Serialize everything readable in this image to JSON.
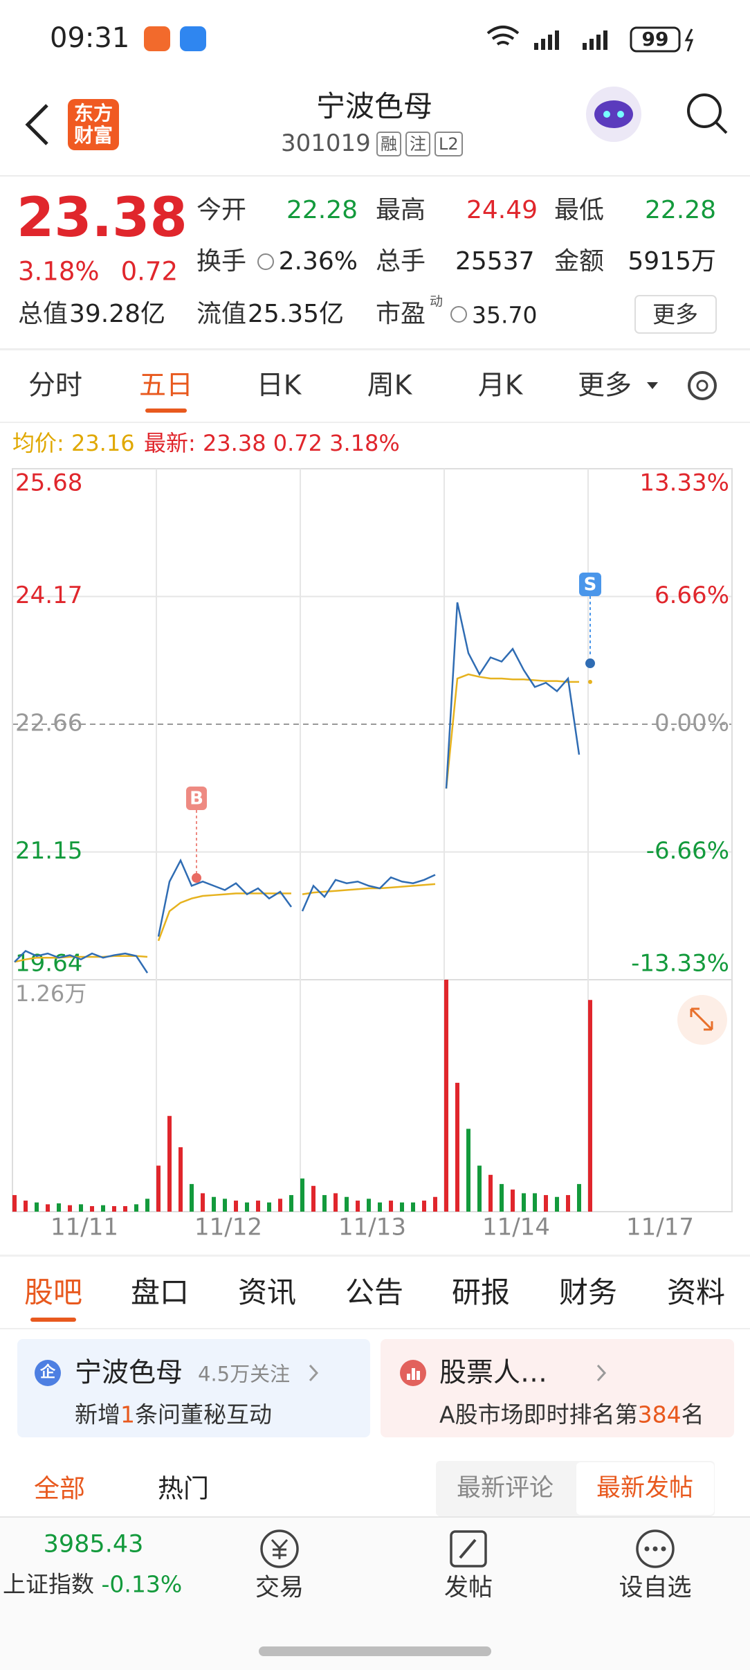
{
  "status_bar": {
    "time": "09:31",
    "battery": "99"
  },
  "header": {
    "logo": "东方财富",
    "title": "宁波色母",
    "code": "301019",
    "badges": [
      "融",
      "注",
      "L2"
    ]
  },
  "quote": {
    "price": "23.38",
    "change_pct": "3.18%",
    "change": "0.72",
    "stats": [
      {
        "label": "今开",
        "value": "22.28"
      },
      {
        "label": "最高",
        "value": "24.49"
      },
      {
        "label": "最低",
        "value": "22.28"
      },
      {
        "label": "换手",
        "value": "2.36%"
      },
      {
        "label": "总手",
        "value": "25537"
      },
      {
        "label": "金额",
        "value": "5915万"
      },
      {
        "label": "总值",
        "value": "39.28亿"
      },
      {
        "label": "流值",
        "value": "25.35亿"
      },
      {
        "label": "市盈",
        "label_sup": "动",
        "value": "35.70"
      }
    ],
    "more_button": "更多"
  },
  "tabs": {
    "items": [
      "分时",
      "五日",
      "日K",
      "周K",
      "月K",
      "更多"
    ],
    "active": 1
  },
  "chart_info": {
    "avg": "均价: 23.16",
    "latest": "最新: 23.38 0.72 3.18%"
  },
  "chart": {
    "type": "line",
    "ylim": [
      19.64,
      25.68
    ],
    "yticks": [
      25.68,
      24.17,
      22.66,
      21.15,
      19.64
    ],
    "y2lim": [
      -13.33,
      13.33
    ],
    "y2ticks": [
      {
        "value": 13.33,
        "label": "13.33%"
      },
      {
        "value": 6.66,
        "label": "6.66%"
      },
      {
        "value": 0,
        "label": "0.00%"
      },
      {
        "value": -6.66,
        "label": "-6.66%"
      },
      {
        "value": -13.33,
        "label": "-13.33%"
      }
    ],
    "volume_ylim": [
      0,
      12600
    ],
    "volume_ticks": [
      {
        "value": 12600,
        "label": "1.26万"
      }
    ],
    "price_color": "#2f6cb3",
    "avg_color": "#e6b21e",
    "up_color": "#e0262c",
    "down_color": "#139a3c",
    "markers": [
      {
        "label": "B"
      },
      {
        "label": "S"
      }
    ],
    "days": [
      {
        "date": "11/11",
        "price": [
          19.85,
          19.98,
          19.92,
          19.95,
          19.9,
          19.93,
          19.88,
          19.95,
          19.9,
          19.93,
          19.95,
          19.92,
          19.72
        ],
        "avg": [
          19.85,
          19.88,
          19.9,
          19.9,
          19.9,
          19.91,
          19.91,
          19.91,
          19.91,
          19.92,
          19.92,
          19.92,
          19.91
        ],
        "volume": [
          900,
          600,
          500,
          400,
          450,
          350,
          400,
          300,
          350,
          300,
          300,
          400,
          700
        ]
      },
      {
        "date": "11/12",
        "price": [
          20.15,
          20.8,
          21.05,
          20.75,
          20.8,
          20.75,
          20.7,
          20.78,
          20.65,
          20.72,
          20.6,
          20.68,
          20.5
        ],
        "avg": [
          20.1,
          20.45,
          20.55,
          20.6,
          20.63,
          20.64,
          20.65,
          20.66,
          20.66,
          20.66,
          20.66,
          20.66,
          20.66
        ],
        "volume": [
          2500,
          5200,
          3500,
          1500,
          1000,
          800,
          700,
          600,
          500,
          600,
          500,
          700,
          900
        ]
      },
      {
        "date": "11/13",
        "price": [
          20.45,
          20.75,
          20.62,
          20.82,
          20.78,
          20.8,
          20.75,
          20.72,
          20.85,
          20.8,
          20.78,
          20.82,
          20.88
        ],
        "avg": [
          20.65,
          20.67,
          20.68,
          20.69,
          20.7,
          20.71,
          20.72,
          20.72,
          20.73,
          20.74,
          20.75,
          20.76,
          20.77
        ],
        "volume": [
          1800,
          1400,
          900,
          1000,
          800,
          600,
          700,
          500,
          600,
          500,
          500,
          600,
          800
        ]
      },
      {
        "date": "11/14",
        "price": [
          21.9,
          24.1,
          23.5,
          23.25,
          23.45,
          23.4,
          23.55,
          23.3,
          23.1,
          23.15,
          23.05,
          23.2,
          22.3
        ],
        "avg": [
          21.9,
          23.2,
          23.25,
          23.22,
          23.2,
          23.2,
          23.19,
          23.19,
          23.18,
          23.17,
          23.17,
          23.16,
          23.16
        ],
        "volume": [
          12600,
          7000,
          4500,
          2500,
          2000,
          1500,
          1200,
          1000,
          1000,
          900,
          800,
          900,
          1500
        ]
      },
      {
        "date": "11/17",
        "price": [
          23.38
        ],
        "avg": [
          23.16
        ],
        "volume": [
          11500
        ]
      }
    ]
  },
  "section_tabs": {
    "items": [
      "股吧",
      "盘口",
      "资讯",
      "公告",
      "研报",
      "财务",
      "资料"
    ],
    "active": 0
  },
  "cards": [
    {
      "icon": "企",
      "title": "宁波色母",
      "meta": "4.5万关注",
      "text": [
        "新增",
        "1",
        "条问董秘互动"
      ]
    },
    {
      "title": "股票人…",
      "text": [
        "A股市场即时排名第",
        "384",
        "名"
      ]
    }
  ],
  "filters": {
    "items": [
      "全部",
      "热门"
    ],
    "active": 0
  },
  "sort": {
    "items": [
      "最新评论",
      "最新发帖"
    ],
    "active": 1
  },
  "bottom_nav": {
    "index_value": "3985.43",
    "index_name": "上证指数",
    "index_change": "-0.13%",
    "items": [
      "交易",
      "发帖",
      "设自选"
    ]
  }
}
